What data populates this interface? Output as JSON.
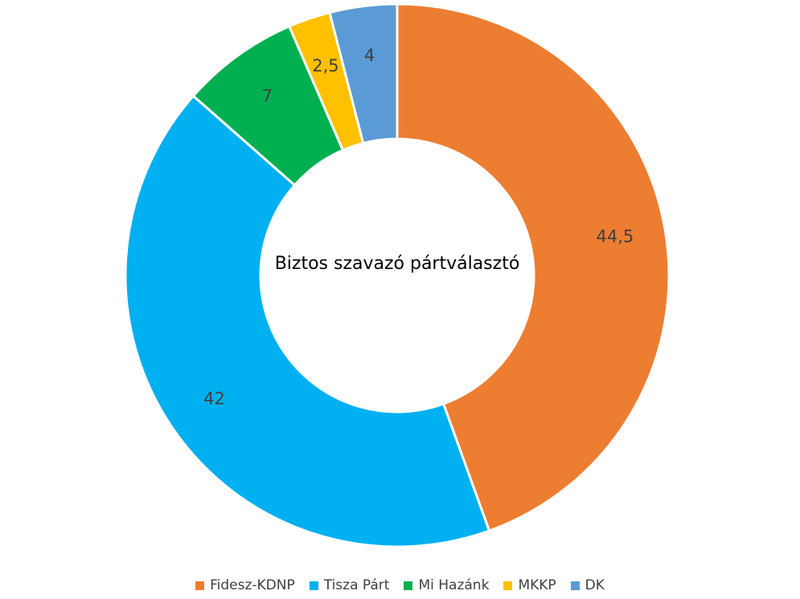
{
  "chart_data": {
    "type": "pie",
    "subtype": "doughnut",
    "center_text": "Biztos szavazó pártválasztó",
    "series": [
      {
        "name": "Fidesz-KDNP",
        "value": 44.5,
        "label": "44,5",
        "color": "#ED7D31"
      },
      {
        "name": "Tisza Párt",
        "value": 42,
        "label": "42",
        "color": "#00B0F0"
      },
      {
        "name": "Mi Hazánk",
        "value": 7,
        "label": "7",
        "color": "#00B050"
      },
      {
        "name": "MKKP",
        "value": 2.5,
        "label": "2,5",
        "color": "#FFC000"
      },
      {
        "name": "DK",
        "value": 4,
        "label": "4",
        "color": "#5B9BD5"
      }
    ],
    "legend_position": "bottom",
    "start_angle": "top, clockwise"
  }
}
